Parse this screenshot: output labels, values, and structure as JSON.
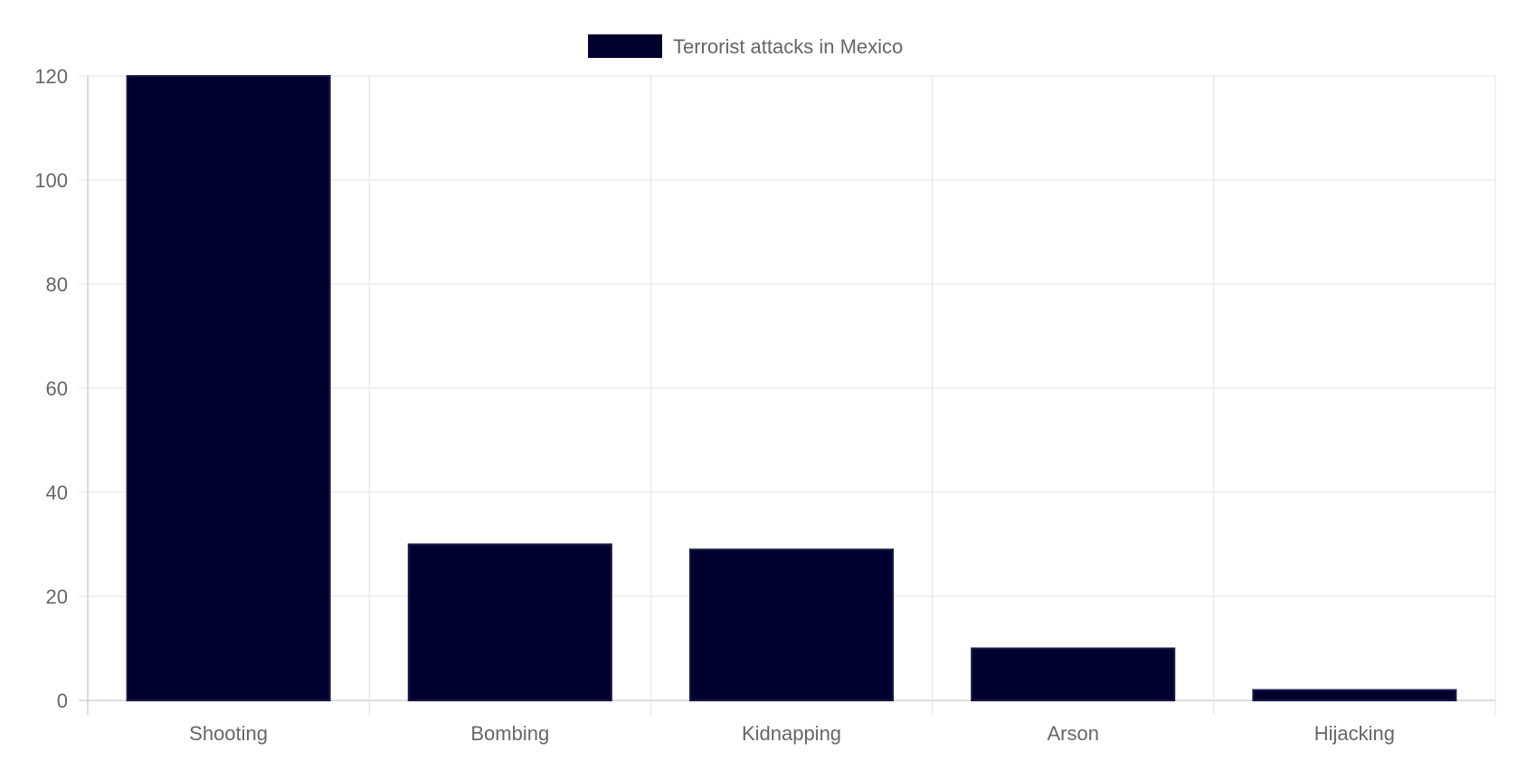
{
  "chart_data": {
    "type": "bar",
    "categories": [
      "Shooting",
      "Bombing",
      "Kidnapping",
      "Arson",
      "Hijacking"
    ],
    "series": [
      {
        "name": "Terrorist attacks in Mexico",
        "values": [
          120,
          30,
          29,
          10,
          2
        ],
        "color": "#00002e",
        "border_color": "#1a1a4a"
      }
    ],
    "ylim": [
      0,
      120
    ],
    "yticks": [
      0,
      20,
      40,
      60,
      80,
      100,
      120
    ],
    "grid": true,
    "legend_position": "top-center"
  }
}
